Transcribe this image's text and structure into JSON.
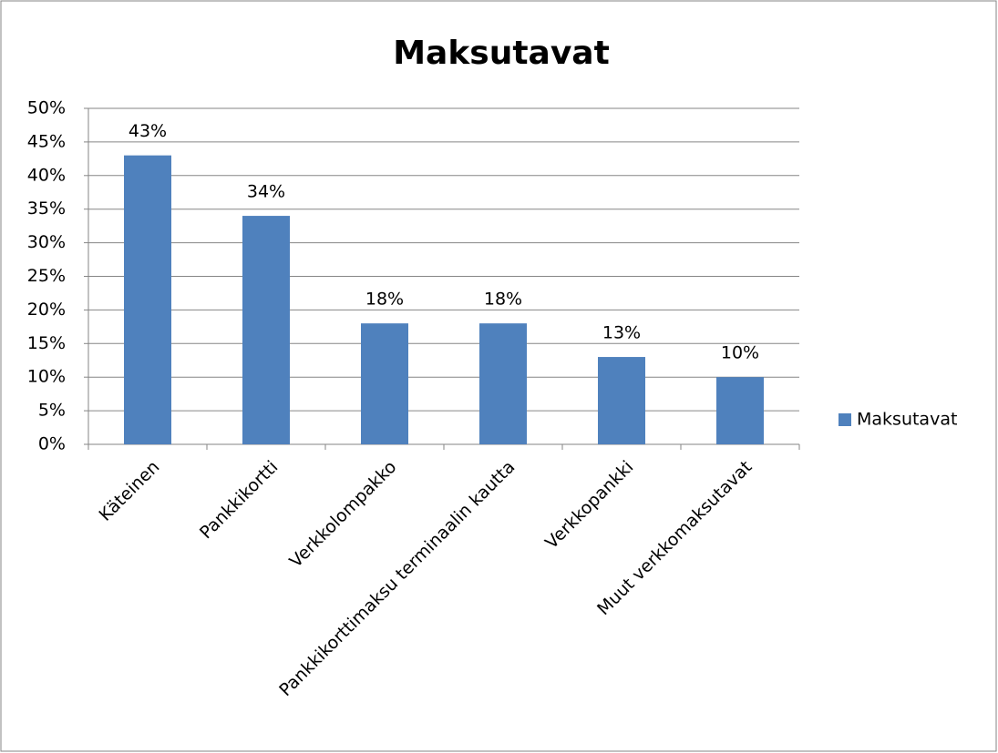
{
  "chart_data": {
    "type": "bar",
    "title": "Maksutavat",
    "categories": [
      "Käteinen",
      "Pankkikortti",
      "Verkkolompakko",
      "Pankkikorttimaksu terminaalin kautta",
      "Verkkopankki",
      "Muut verkkomaksutavat"
    ],
    "series": [
      {
        "name": "Maksutavat",
        "color": "#4f81bd",
        "values": [
          43,
          34,
          18,
          18,
          13,
          10
        ],
        "value_labels": [
          "43%",
          "34%",
          "18%",
          "18%",
          "13%",
          "10%"
        ]
      }
    ],
    "ylim": [
      0,
      50
    ],
    "yticks": [
      {
        "value": 0,
        "label": "0%"
      },
      {
        "value": 5,
        "label": "5%"
      },
      {
        "value": 10,
        "label": "10%"
      },
      {
        "value": 15,
        "label": "15%"
      },
      {
        "value": 20,
        "label": "20%"
      },
      {
        "value": 25,
        "label": "25%"
      },
      {
        "value": 30,
        "label": "30%"
      },
      {
        "value": 35,
        "label": "35%"
      },
      {
        "value": 40,
        "label": "40%"
      },
      {
        "value": 45,
        "label": "45%"
      },
      {
        "value": 50,
        "label": "50%"
      }
    ],
    "grid": true,
    "legend": "right"
  }
}
